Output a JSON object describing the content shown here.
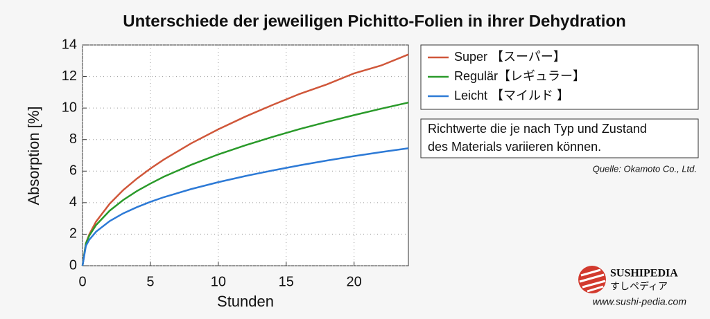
{
  "chart_data": {
    "type": "line",
    "title": "Unterschiede der jeweiligen Pichitto-Folien in ihrer Dehydration",
    "x_label": "Stunden",
    "y_label": "Absorption [%]",
    "x": [
      0,
      0.25,
      0.5,
      1,
      2,
      3,
      4,
      5,
      6,
      8,
      10,
      12,
      14,
      16,
      18,
      20,
      22,
      24
    ],
    "series": [
      {
        "name": "Super 【スーパー】",
        "color": "#d0573a",
        "values": [
          0,
          1.42,
          1.99,
          2.8,
          3.93,
          4.8,
          5.52,
          6.16,
          6.74,
          7.76,
          8.65,
          9.46,
          10.2,
          10.9,
          11.5,
          12.2,
          12.7,
          13.4
        ]
      },
      {
        "name": "Regulär【レギュラー】",
        "color": "#2a9a2a",
        "values": [
          0,
          1.41,
          1.91,
          2.58,
          3.49,
          4.17,
          4.73,
          5.21,
          5.65,
          6.4,
          7.06,
          7.64,
          8.17,
          8.67,
          9.12,
          9.55,
          9.96,
          10.35
        ]
      },
      {
        "name": "Leicht 【マイルド 】",
        "color": "#2d7ad6",
        "values": [
          0,
          1.26,
          1.65,
          2.16,
          2.83,
          3.32,
          3.71,
          4.05,
          4.35,
          4.86,
          5.3,
          5.69,
          6.04,
          6.37,
          6.67,
          6.95,
          7.21,
          7.45
        ]
      }
    ],
    "xlim": [
      0,
      24
    ],
    "xticks": [
      0,
      5,
      10,
      15,
      20
    ],
    "ylim": [
      0,
      14
    ],
    "yticks": [
      0,
      2,
      4,
      6,
      8,
      10,
      12,
      14
    ],
    "grid": true,
    "legend": "upper right",
    "note": [
      "Richtwerte die je nach Typ und Zustand",
      "des Materials variieren können."
    ],
    "source": "Quelle: Okamoto Co., Ltd.",
    "brand": {
      "name": "SUSHIPEDIA",
      "subtitle": "すしペディア",
      "url": "www.sushi-pedia.com"
    }
  }
}
